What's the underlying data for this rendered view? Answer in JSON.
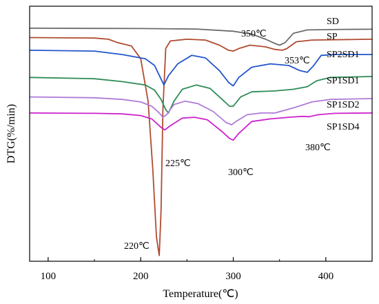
{
  "chart_data": {
    "type": "line",
    "xlabel": "Temperature(℃)",
    "ylabel": "DTG(%/min)",
    "xlim": [
      80,
      450
    ],
    "xticks": [
      100,
      200,
      300,
      400
    ],
    "y_ticks_shown": false,
    "grid": false,
    "legend": "none; series labeled inline at right",
    "series": [
      {
        "name": "SD",
        "color": "#6b6b6b",
        "points": [
          [
            80,
            -0.2
          ],
          [
            150,
            -0.21
          ],
          [
            200,
            -0.22
          ],
          [
            260,
            -0.25
          ],
          [
            300,
            -0.38
          ],
          [
            320,
            -0.55
          ],
          [
            335,
            -0.85
          ],
          [
            345,
            -1.1
          ],
          [
            350,
            -1.2
          ],
          [
            356,
            -1.05
          ],
          [
            365,
            -0.5
          ],
          [
            380,
            -0.3
          ],
          [
            420,
            -0.27
          ],
          [
            450,
            -0.26
          ]
        ]
      },
      {
        "name": "SP",
        "color": "#b04a30",
        "points": [
          [
            80,
            -0.75
          ],
          [
            150,
            -0.78
          ],
          [
            165,
            -0.85
          ],
          [
            175,
            -1.05
          ],
          [
            190,
            -1.25
          ],
          [
            200,
            -2.0
          ],
          [
            208,
            -4.5
          ],
          [
            213,
            -8.5
          ],
          [
            217,
            -12.5
          ],
          [
            220,
            -13.6
          ],
          [
            222,
            -11.0
          ],
          [
            224,
            -5.0
          ],
          [
            227,
            -1.4
          ],
          [
            232,
            -0.95
          ],
          [
            250,
            -0.85
          ],
          [
            270,
            -0.9
          ],
          [
            285,
            -1.2
          ],
          [
            295,
            -1.5
          ],
          [
            300,
            -1.55
          ],
          [
            306,
            -1.4
          ],
          [
            318,
            -1.2
          ],
          [
            335,
            -1.3
          ],
          [
            345,
            -1.45
          ],
          [
            353,
            -1.5
          ],
          [
            358,
            -1.4
          ],
          [
            368,
            -1.0
          ],
          [
            385,
            -0.9
          ],
          [
            450,
            -0.85
          ]
        ]
      },
      {
        "name": "SP2SD1",
        "color": "#2255cc",
        "points": [
          [
            80,
            -1.5
          ],
          [
            150,
            -1.55
          ],
          [
            180,
            -1.75
          ],
          [
            205,
            -2.0
          ],
          [
            215,
            -2.4
          ],
          [
            222,
            -3.2
          ],
          [
            225,
            -3.55
          ],
          [
            230,
            -3.0
          ],
          [
            240,
            -2.3
          ],
          [
            255,
            -1.8
          ],
          [
            270,
            -1.95
          ],
          [
            285,
            -2.7
          ],
          [
            295,
            -3.4
          ],
          [
            300,
            -3.6
          ],
          [
            306,
            -3.1
          ],
          [
            320,
            -2.5
          ],
          [
            340,
            -2.3
          ],
          [
            360,
            -2.4
          ],
          [
            372,
            -2.7
          ],
          [
            380,
            -2.8
          ],
          [
            387,
            -2.4
          ],
          [
            395,
            -1.8
          ],
          [
            410,
            -1.75
          ],
          [
            450,
            -1.75
          ]
        ]
      },
      {
        "name": "SP1SD1",
        "color": "#2e8b57",
        "points": [
          [
            80,
            -3.1
          ],
          [
            150,
            -3.18
          ],
          [
            180,
            -3.35
          ],
          [
            205,
            -3.55
          ],
          [
            215,
            -3.85
          ],
          [
            222,
            -4.4
          ],
          [
            227,
            -5.0
          ],
          [
            230,
            -5.2
          ],
          [
            236,
            -4.5
          ],
          [
            245,
            -3.8
          ],
          [
            260,
            -3.55
          ],
          [
            275,
            -3.75
          ],
          [
            288,
            -4.4
          ],
          [
            296,
            -4.8
          ],
          [
            300,
            -4.8
          ],
          [
            308,
            -4.25
          ],
          [
            320,
            -3.95
          ],
          [
            345,
            -3.9
          ],
          [
            365,
            -3.8
          ],
          [
            380,
            -3.65
          ],
          [
            390,
            -3.3
          ],
          [
            405,
            -3.1
          ],
          [
            450,
            -3.05
          ]
        ]
      },
      {
        "name": "SP1SD2",
        "color": "#b07ad8",
        "points": [
          [
            80,
            -4.25
          ],
          [
            150,
            -4.3
          ],
          [
            180,
            -4.4
          ],
          [
            200,
            -4.55
          ],
          [
            212,
            -4.8
          ],
          [
            220,
            -5.2
          ],
          [
            224,
            -5.45
          ],
          [
            228,
            -5.3
          ],
          [
            236,
            -4.7
          ],
          [
            248,
            -4.5
          ],
          [
            262,
            -4.65
          ],
          [
            278,
            -5.1
          ],
          [
            292,
            -5.75
          ],
          [
            298,
            -5.9
          ],
          [
            303,
            -5.7
          ],
          [
            315,
            -5.3
          ],
          [
            330,
            -5.2
          ],
          [
            345,
            -5.2
          ],
          [
            365,
            -4.9
          ],
          [
            385,
            -4.55
          ],
          [
            405,
            -4.4
          ],
          [
            450,
            -4.35
          ]
        ]
      },
      {
        "name": "SP1SD4",
        "color": "#cc22cc",
        "points": [
          [
            80,
            -5.2
          ],
          [
            150,
            -5.22
          ],
          [
            180,
            -5.25
          ],
          [
            200,
            -5.35
          ],
          [
            212,
            -5.55
          ],
          [
            222,
            -6.05
          ],
          [
            226,
            -6.2
          ],
          [
            232,
            -5.95
          ],
          [
            245,
            -5.5
          ],
          [
            258,
            -5.45
          ],
          [
            272,
            -5.6
          ],
          [
            288,
            -6.3
          ],
          [
            296,
            -6.7
          ],
          [
            300,
            -6.8
          ],
          [
            306,
            -6.4
          ],
          [
            320,
            -5.7
          ],
          [
            340,
            -5.55
          ],
          [
            360,
            -5.45
          ],
          [
            375,
            -5.4
          ],
          [
            382,
            -5.42
          ],
          [
            392,
            -5.3
          ],
          [
            410,
            -5.22
          ],
          [
            450,
            -5.2
          ]
        ]
      }
    ],
    "annotations": [
      "350℃",
      "353℃",
      "225℃",
      "300℃",
      "380℃",
      "220℃"
    ]
  }
}
